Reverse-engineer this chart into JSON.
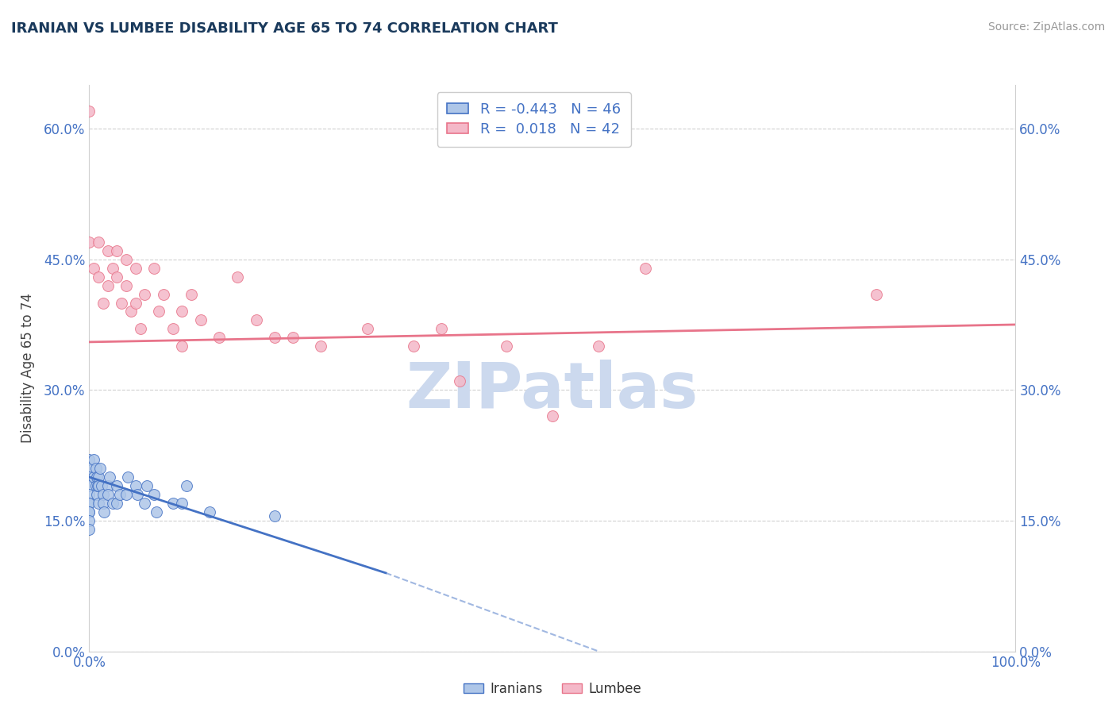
{
  "title": "IRANIAN VS LUMBEE DISABILITY AGE 65 TO 74 CORRELATION CHART",
  "source": "Source: ZipAtlas.com",
  "ylabel": "Disability Age 65 to 74",
  "xlim": [
    0.0,
    1.0
  ],
  "ylim": [
    0.0,
    0.65
  ],
  "yticks": [
    0.0,
    0.15,
    0.3,
    0.45,
    0.6
  ],
  "ytick_labels": [
    "0.0%",
    "15.0%",
    "30.0%",
    "45.0%",
    "60.0%"
  ],
  "xticks": [
    0.0,
    1.0
  ],
  "xtick_labels": [
    "0.0%",
    "100.0%"
  ],
  "iranians_R": -0.443,
  "iranians_N": 46,
  "lumbee_R": 0.018,
  "lumbee_N": 42,
  "iranian_color": "#aec6e8",
  "lumbee_color": "#f4b8c8",
  "iranian_line_color": "#4472c4",
  "lumbee_line_color": "#e8748a",
  "watermark_color": "#ccd9ee",
  "title_color": "#1a3a5c",
  "axis_label_color": "#444444",
  "tick_label_color": "#4472c4",
  "grid_color": "#d0d0d0",
  "iranians_x": [
    0.0,
    0.0,
    0.0,
    0.0,
    0.0,
    0.0,
    0.0,
    0.0,
    0.0,
    0.0,
    0.0,
    0.005,
    0.005,
    0.007,
    0.007,
    0.008,
    0.008,
    0.009,
    0.01,
    0.01,
    0.01,
    0.012,
    0.013,
    0.015,
    0.015,
    0.016,
    0.02,
    0.02,
    0.022,
    0.025,
    0.03,
    0.03,
    0.033,
    0.04,
    0.042,
    0.05,
    0.052,
    0.06,
    0.062,
    0.07,
    0.072,
    0.09,
    0.1,
    0.105,
    0.13,
    0.2
  ],
  "iranians_y": [
    0.22,
    0.21,
    0.2,
    0.19,
    0.18,
    0.17,
    0.17,
    0.16,
    0.16,
    0.15,
    0.14,
    0.22,
    0.2,
    0.21,
    0.19,
    0.2,
    0.18,
    0.19,
    0.2,
    0.19,
    0.17,
    0.21,
    0.19,
    0.18,
    0.17,
    0.16,
    0.19,
    0.18,
    0.2,
    0.17,
    0.19,
    0.17,
    0.18,
    0.18,
    0.2,
    0.19,
    0.18,
    0.17,
    0.19,
    0.18,
    0.16,
    0.17,
    0.17,
    0.19,
    0.16,
    0.155
  ],
  "lumbee_x": [
    0.0,
    0.0,
    0.005,
    0.01,
    0.01,
    0.015,
    0.02,
    0.02,
    0.025,
    0.03,
    0.03,
    0.035,
    0.04,
    0.04,
    0.045,
    0.05,
    0.05,
    0.055,
    0.06,
    0.07,
    0.075,
    0.08,
    0.09,
    0.1,
    0.1,
    0.11,
    0.12,
    0.14,
    0.16,
    0.18,
    0.2,
    0.22,
    0.25,
    0.3,
    0.35,
    0.38,
    0.4,
    0.45,
    0.5,
    0.55,
    0.6,
    0.85
  ],
  "lumbee_y": [
    0.62,
    0.47,
    0.44,
    0.47,
    0.43,
    0.4,
    0.46,
    0.42,
    0.44,
    0.46,
    0.43,
    0.4,
    0.45,
    0.42,
    0.39,
    0.44,
    0.4,
    0.37,
    0.41,
    0.44,
    0.39,
    0.41,
    0.37,
    0.39,
    0.35,
    0.41,
    0.38,
    0.36,
    0.43,
    0.38,
    0.36,
    0.36,
    0.35,
    0.37,
    0.35,
    0.37,
    0.31,
    0.35,
    0.27,
    0.35,
    0.44,
    0.41
  ],
  "iranian_line_x_start": 0.0,
  "iranian_line_x_solid_end": 0.32,
  "iranian_line_x_dash_end": 0.55,
  "iranian_line_y_start": 0.2,
  "iranian_line_y_solid_end": 0.09,
  "iranian_line_y_dash_end": 0.0,
  "lumbee_line_x_start": 0.0,
  "lumbee_line_x_end": 1.0,
  "lumbee_line_y_start": 0.355,
  "lumbee_line_y_end": 0.375
}
